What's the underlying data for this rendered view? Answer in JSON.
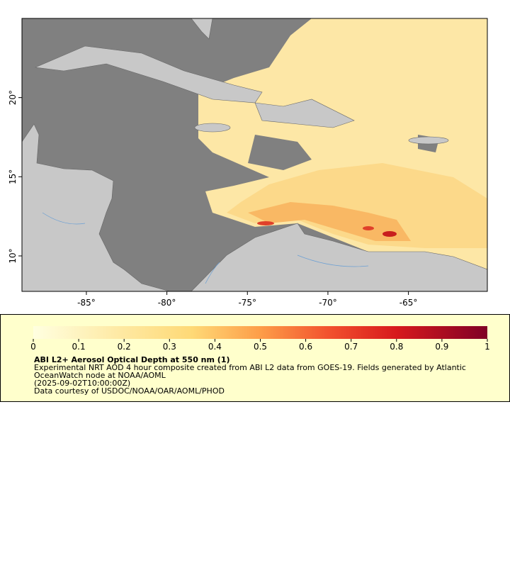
{
  "map": {
    "xlim": [
      -89,
      -60.1
    ],
    "ylim": [
      7.76,
      25
    ],
    "xticks": [
      {
        "value": -85,
        "label": "-85°"
      },
      {
        "value": -80,
        "label": "-80°"
      },
      {
        "value": -75,
        "label": "-75°"
      },
      {
        "value": -70,
        "label": "-70°"
      },
      {
        "value": -65,
        "label": "-65°"
      }
    ],
    "yticks": [
      {
        "value": 10,
        "label": "10°"
      },
      {
        "value": 15,
        "label": "15°"
      },
      {
        "value": 20,
        "label": "20°"
      }
    ]
  },
  "colorbar": {
    "lim": [
      0,
      1
    ],
    "ticks": [
      0,
      0.1,
      0.2,
      0.3,
      0.4,
      0.5,
      0.6,
      0.7,
      0.8,
      0.9,
      1
    ]
  },
  "legend": {
    "title": "ABI L2+ Aerosol Optical Depth at 550 nm (1)",
    "lines": [
      "Experimental NRT AOD 4 hour composite created from ABI L2 data from GOES-19. Fields generated by Atlantic",
      "OceanWatch node at NOAA/AOML",
      "(2025-09-02T10:00:00Z)",
      "Data courtesy of USDOC/NOAA/OAR/AOML/PHOD"
    ]
  }
}
